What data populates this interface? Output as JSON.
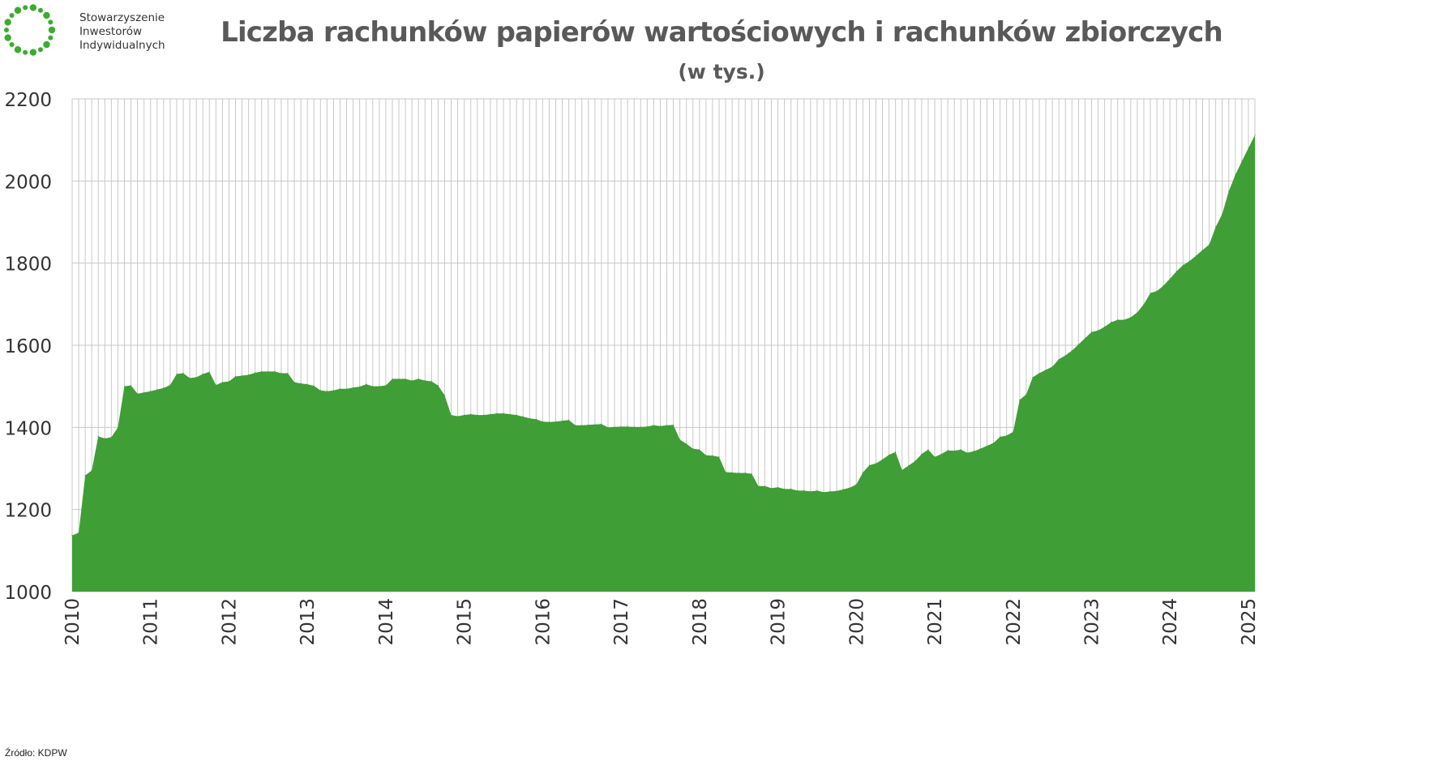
{
  "logo": {
    "lines": [
      "Stowarzyszenie",
      "Inwestorów",
      "Indywidualnych"
    ]
  },
  "title": "Liczba rachunków papierów wartościowych i rachunków zbiorczych",
  "subtitle": "(w tys.)",
  "source": "Źródło: KDPW",
  "colors": {
    "area": "#3f9e35",
    "grid": "#c8c8c8",
    "logo": "#3aad2e",
    "text": "#595959"
  },
  "chart_data": {
    "type": "area",
    "title": "Liczba rachunków papierów wartościowych i rachunków zbiorczych",
    "subtitle": "(w tys.)",
    "xlabel": "",
    "ylabel": "",
    "ylim": [
      1000,
      2200
    ],
    "yticks": [
      1000,
      1200,
      1400,
      1600,
      1800,
      2000,
      2200
    ],
    "year_labels": [
      "2010",
      "2011",
      "2012",
      "2013",
      "2014",
      "2015",
      "2016",
      "2017",
      "2018",
      "2019",
      "2020",
      "2021",
      "2022",
      "2023",
      "2024",
      "2025"
    ],
    "grid": "vertical monthly lines",
    "start": "2010-01",
    "frequency": "monthly",
    "series": [
      {
        "values": [
          1137,
          1143,
          1283,
          1295,
          1378,
          1373,
          1376,
          1400,
          1500,
          1502,
          1482,
          1485,
          1488,
          1492,
          1496,
          1503,
          1530,
          1532,
          1520,
          1522,
          1530,
          1535,
          1503,
          1510,
          1512,
          1524,
          1526,
          1528,
          1533,
          1536,
          1536,
          1536,
          1532,
          1532,
          1510,
          1507,
          1505,
          1501,
          1490,
          1488,
          1490,
          1494,
          1494,
          1497,
          1499,
          1505,
          1500,
          1500,
          1502,
          1518,
          1518,
          1518,
          1514,
          1518,
          1514,
          1512,
          1502,
          1478,
          1430,
          1427,
          1430,
          1432,
          1430,
          1430,
          1432,
          1434,
          1434,
          1432,
          1430,
          1426,
          1422,
          1420,
          1414,
          1413,
          1414,
          1416,
          1418,
          1405,
          1405,
          1406,
          1407,
          1408,
          1400,
          1401,
          1402,
          1402,
          1401,
          1401,
          1402,
          1405,
          1403,
          1405,
          1406,
          1370,
          1360,
          1348,
          1346,
          1332,
          1331,
          1328,
          1291,
          1290,
          1289,
          1289,
          1287,
          1257,
          1257,
          1252,
          1254,
          1250,
          1250,
          1246,
          1246,
          1244,
          1246,
          1242,
          1244,
          1245,
          1249,
          1253,
          1261,
          1290,
          1308,
          1312,
          1322,
          1333,
          1340,
          1296,
          1307,
          1318,
          1335,
          1346,
          1328,
          1335,
          1344,
          1343,
          1346,
          1338,
          1342,
          1348,
          1355,
          1362,
          1377,
          1380,
          1389,
          1467,
          1480,
          1522,
          1532,
          1540,
          1548,
          1566,
          1575,
          1587,
          1602,
          1617,
          1632,
          1636,
          1645,
          1656,
          1662,
          1662,
          1668,
          1680,
          1700,
          1727,
          1732,
          1745,
          1762,
          1780,
          1795,
          1805,
          1818,
          1832,
          1845,
          1888,
          1920,
          1975,
          2015,
          2048,
          2080,
          2112
        ]
      }
    ]
  }
}
